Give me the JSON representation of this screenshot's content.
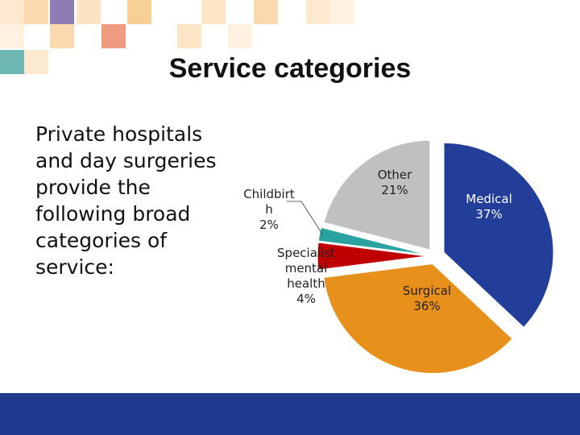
{
  "title": "Service categories",
  "body": "Private hospitals and day surgeries provide the following broad categories of service:",
  "chart_data": {
    "type": "pie",
    "categories": [
      "Medical",
      "Surgical",
      "Specialist mental health",
      "Childbirth",
      "Other"
    ],
    "values": [
      37,
      36,
      4,
      2,
      21
    ],
    "value_labels": [
      "37%",
      "36%",
      "4%",
      "2%",
      "21%"
    ],
    "colors": [
      "#233e99",
      "#e8901c",
      "#c00000",
      "#2aa3a0",
      "#c0c0c0"
    ]
  }
}
